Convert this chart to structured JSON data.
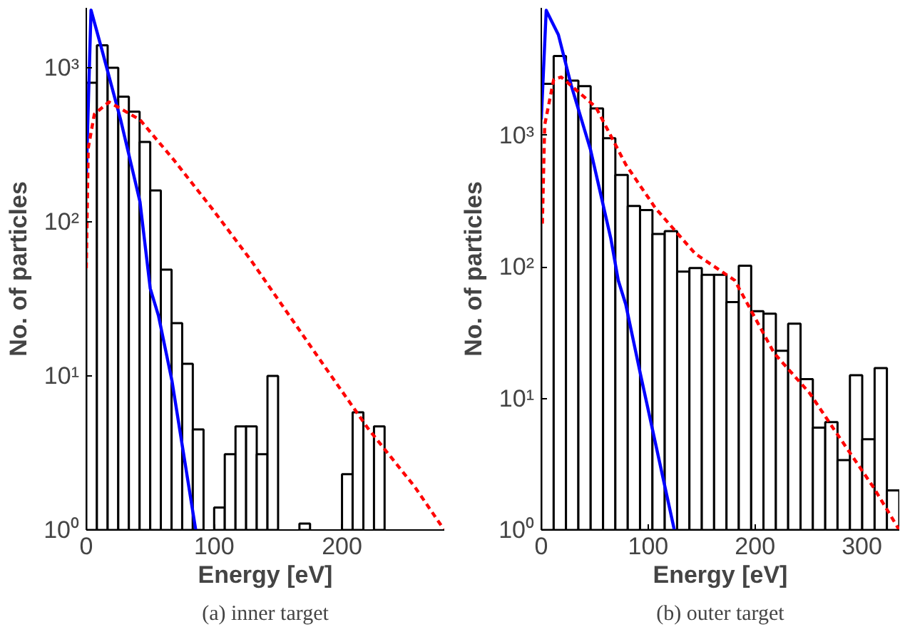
{
  "chart_data": [
    {
      "type": "histogram",
      "xlabel": "Energy [eV]",
      "ylabel": "No. of particles",
      "log": true,
      "grid": false,
      "color": "#ffffff",
      "bins": [
        0,
        8.3,
        16.7,
        25,
        33.3,
        41.7,
        50,
        58.3,
        66.7,
        75,
        83.3,
        91.7,
        100,
        108.3,
        116.7,
        125,
        133.3,
        141.7,
        150,
        158.3,
        166.7,
        175,
        183.3,
        191.7,
        200,
        208.3,
        216.7,
        225,
        233.3
      ],
      "values": [
        800,
        1400,
        1000,
        650,
        520,
        330,
        160,
        49,
        22,
        12,
        4.5,
        null,
        1.4,
        3.1,
        4.7,
        4.7,
        3.1,
        10,
        null,
        null,
        1.1,
        null,
        null,
        null,
        2.3,
        5.8,
        null,
        4.7
      ],
      "series": [
        {
          "type": "line",
          "color": "#0000ff",
          "line_style": "solid",
          "x": [
            0,
            3.7,
            12,
            27,
            42,
            50,
            56.5,
            67,
            85.6
          ],
          "values": [
            200,
            2370,
            1330,
            455,
            135,
            37,
            24.5,
            9.3,
            1
          ]
        },
        {
          "type": "line",
          "color": "#ff0000",
          "line_style": "dashed",
          "x": [
            0,
            1.5,
            6.3,
            17.7,
            42,
            68,
            99,
            129,
            144,
            159,
            182,
            220,
            257,
            280
          ],
          "values": [
            50,
            300,
            500,
            600,
            460,
            255,
            120,
            56,
            37,
            24.5,
            13,
            4.6,
            1.9,
            1
          ]
        }
      ],
      "xlim": [
        0,
        280
      ],
      "xticks": [
        0,
        100,
        200
      ],
      "ylim": [
        1,
        2450
      ],
      "yticks": [
        {
          "value": 1,
          "label": "10⁰"
        },
        {
          "value": 10,
          "label": "10¹"
        },
        {
          "value": 100,
          "label": "10²"
        },
        {
          "value": 1000,
          "label": "10³"
        }
      ],
      "annotations": [
        "(a) inner target"
      ]
    },
    {
      "type": "histogram",
      "xlabel": "Energy [eV]",
      "ylabel": "No. of particles",
      "log": true,
      "grid": false,
      "color": "#ffffff",
      "bins": [
        0,
        11.6,
        23.1,
        34.7,
        46.2,
        57.8,
        69.3,
        80.9,
        92.4,
        104,
        115.5,
        127.1,
        138.6,
        150.2,
        161.7,
        173.3,
        184.8,
        196.4,
        207.9,
        219.5,
        231,
        242.6,
        254.1,
        265.7,
        277.2,
        288.8,
        300.3,
        311.9,
        323.4,
        335
      ],
      "values": [
        2460,
        4000,
        2600,
        2360,
        1600,
        950,
        500,
        290,
        270,
        178,
        187,
        92,
        98,
        87,
        87,
        54,
        102,
        46,
        44,
        23,
        37,
        14,
        6,
        6.6,
        3.4,
        15,
        4.9,
        17,
        2
      ],
      "series": [
        {
          "type": "line",
          "color": "#0000ff",
          "line_style": "solid",
          "x": [
            0,
            4.6,
            16,
            28,
            46,
            65,
            72,
            79,
            93,
            124.5
          ],
          "values": [
            1320,
            8900,
            5800,
            2400,
            780,
            165,
            79,
            52,
            15,
            1
          ]
        },
        {
          "type": "line",
          "color": "#ff0000",
          "line_style": "dashed",
          "x": [
            1,
            3.2,
            11.6,
            18.6,
            51,
            79,
            107,
            144,
            181,
            218,
            251,
            274,
            311,
            335
          ],
          "values": [
            213,
            1200,
            2650,
            2770,
            1640,
            600,
            278,
            126,
            79,
            22,
            11,
            5.8,
            2.1,
            1
          ]
        }
      ],
      "xlim": [
        0,
        335
      ],
      "xticks": [
        0,
        100,
        200,
        300
      ],
      "ylim": [
        1,
        9300
      ],
      "yticks": [
        {
          "value": 1,
          "label": "10⁰"
        },
        {
          "value": 10,
          "label": "10¹"
        },
        {
          "value": 100,
          "label": "10²"
        },
        {
          "value": 1000,
          "label": "10³"
        }
      ],
      "annotations": [
        "(b) outer target"
      ]
    }
  ]
}
